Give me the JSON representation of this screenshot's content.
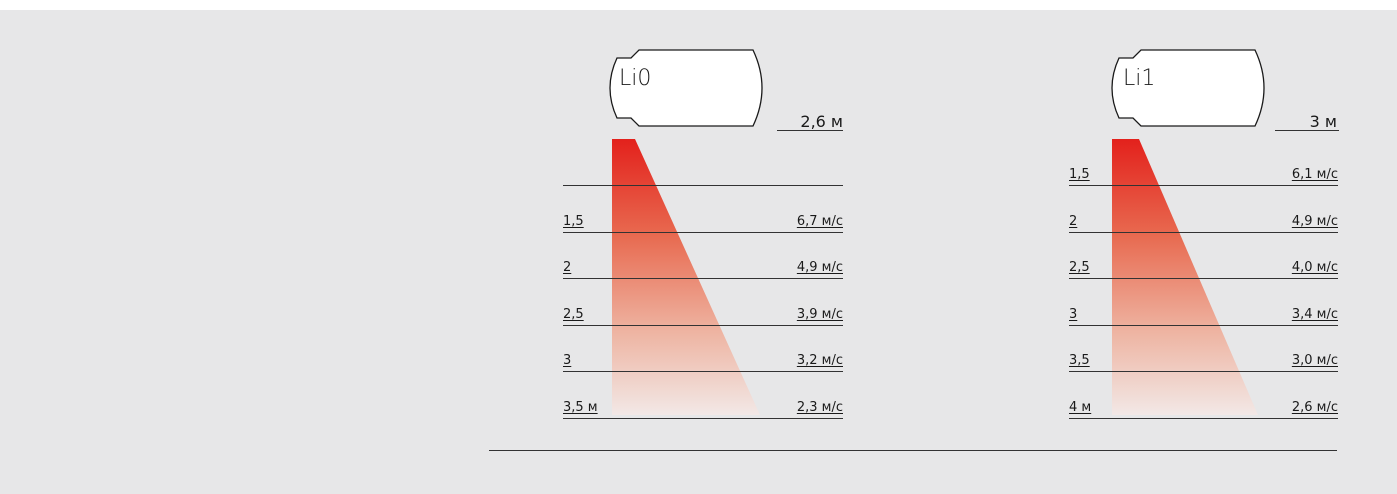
{
  "diagram": {
    "units": [
      {
        "name": "Li0",
        "mount_height": "2,6 м",
        "rows": [
          {
            "distance": "",
            "speed": ""
          },
          {
            "distance": "1,5",
            "speed": "6,7 м/с"
          },
          {
            "distance": "2",
            "speed": "4,9 м/с"
          },
          {
            "distance": "2,5",
            "speed": "3,9 м/с"
          },
          {
            "distance": "3",
            "speed": "3,2 м/с"
          },
          {
            "distance": "3,5 м",
            "speed": "2,3 м/с"
          }
        ]
      },
      {
        "name": "Li1",
        "mount_height": "3 м",
        "rows": [
          {
            "distance": "1,5",
            "speed": "6,1 м/с"
          },
          {
            "distance": "2",
            "speed": "4,9 м/с"
          },
          {
            "distance": "2,5",
            "speed": "4,0 м/с"
          },
          {
            "distance": "3",
            "speed": "3,4 м/с"
          },
          {
            "distance": "3,5",
            "speed": "3,0 м/с"
          },
          {
            "distance": "4 м",
            "speed": "2,6 м/с"
          }
        ]
      }
    ],
    "colors": {
      "airflow_top": "#e3211c",
      "airflow_bottom": "#f2e8e6",
      "background": "#e7e7e8",
      "lines": "#333333"
    }
  }
}
